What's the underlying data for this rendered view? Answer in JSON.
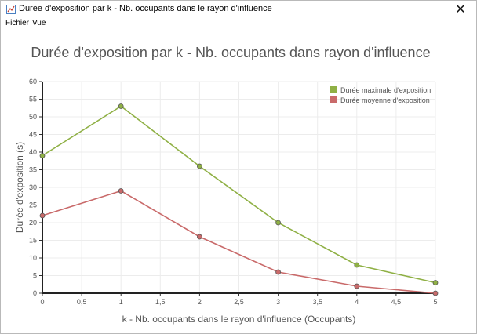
{
  "window": {
    "title": "Durée d'exposition par k - Nb. occupants dans le rayon d'influence",
    "close_glyph": "✕"
  },
  "menu": [
    {
      "label": "Fichier"
    },
    {
      "label": "Vue"
    }
  ],
  "icons": {
    "app": "chart-app-icon",
    "close": "close-icon"
  },
  "colors": {
    "max_series": "#8fb045",
    "mean_series": "#c96a6a",
    "title_text": "#555555"
  },
  "chart_data": {
    "type": "line",
    "title": "Durée d'exposition par k - Nb. occupants dans rayon d'influence",
    "xlabel": "k - Nb. occupants dans le rayon d'influence (Occupants)",
    "ylabel": "Durée d'exposition (s)",
    "xlim": [
      0,
      5
    ],
    "ylim": [
      0,
      60
    ],
    "x_ticks": [
      "0",
      "0,5",
      "1",
      "1,5",
      "2",
      "2,5",
      "3",
      "3,5",
      "4",
      "4,5",
      "5"
    ],
    "y_ticks": [
      "0",
      "5",
      "10",
      "15",
      "20",
      "25",
      "30",
      "35",
      "40",
      "45",
      "50",
      "55",
      "60"
    ],
    "grid": true,
    "legend_position": "top-right",
    "x": [
      0,
      1,
      2,
      3,
      4,
      5
    ],
    "series": [
      {
        "name": "Durée maximale d'exposition",
        "values": [
          39,
          53,
          36,
          20,
          8,
          3
        ],
        "color": "#8fb045"
      },
      {
        "name": "Durée moyenne d'exposition",
        "values": [
          22,
          29,
          16,
          6,
          2,
          0
        ],
        "color": "#c96a6a"
      }
    ]
  }
}
